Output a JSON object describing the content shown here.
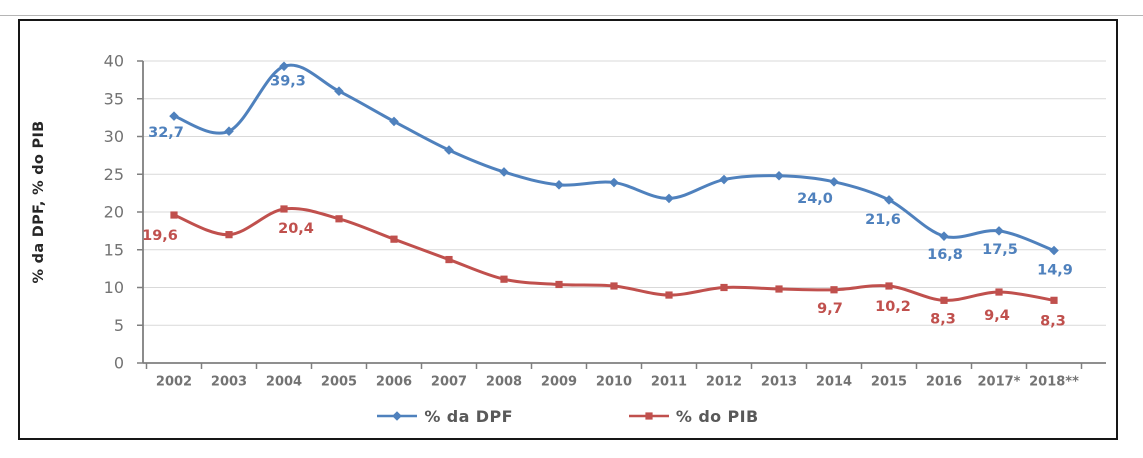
{
  "colors": {
    "dpf_blue": "#4F81BD",
    "pib_red": "#C0504D",
    "grid": "#D9D9D9",
    "axis_line": "#7F7F7F",
    "tick_text": "#737373",
    "legend_text": "#595959"
  },
  "chart_data": {
    "type": "line",
    "smooth": true,
    "grid": true,
    "legend_position": "bottom",
    "title": "",
    "xlabel": "",
    "ylabel": "% da DPF, % do PIB",
    "ylim": [
      0,
      40
    ],
    "ytick_step": 5,
    "categories": [
      "2002",
      "2003",
      "2004",
      "2005",
      "2006",
      "2007",
      "2008",
      "2009",
      "2010",
      "2011",
      "2012",
      "2013",
      "2014",
      "2015",
      "2016",
      "2017*",
      "2018**"
    ],
    "series": [
      {
        "name": "% da DPF",
        "color": "#4F81BD",
        "marker": "diamond",
        "values": [
          32.7,
          30.7,
          39.3,
          36.0,
          32.0,
          28.2,
          25.3,
          23.6,
          23.9,
          21.8,
          24.3,
          24.8,
          24.0,
          21.6,
          16.8,
          17.5,
          14.9
        ],
        "point_labels": {
          "2002": "32,7",
          "2004": "39,3",
          "2014": "24,0",
          "2015": "21,6",
          "2016": "16,8",
          "2017*": "17,5",
          "2018**": "14,9"
        }
      },
      {
        "name": "% do PIB",
        "color": "#C0504D",
        "marker": "square",
        "values": [
          19.6,
          17.0,
          20.4,
          19.1,
          16.4,
          13.7,
          11.1,
          10.4,
          10.2,
          9.0,
          10.0,
          9.8,
          9.7,
          10.2,
          8.3,
          9.4,
          8.3
        ],
        "point_labels": {
          "2002": "19,6",
          "2004": "20,4",
          "2014": "9,7",
          "2015": "10,2",
          "2016": "8,3",
          "2017*": "9,4",
          "2018**": "8,3"
        }
      }
    ]
  }
}
